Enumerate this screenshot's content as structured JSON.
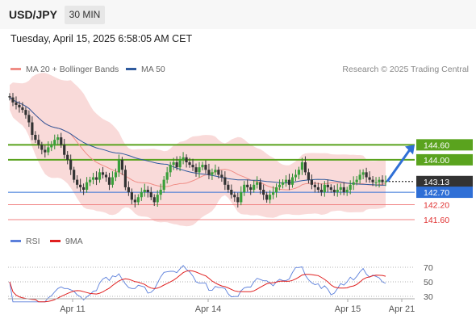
{
  "header": {
    "symbol": "USD/JPY",
    "timeframe": "30 MIN"
  },
  "datetime": "Tuesday, April 15, 2025 6:58:05 AM CET",
  "legend": {
    "ma20": {
      "label": "MA 20 + Bollinger Bands",
      "color": "#f08d86"
    },
    "ma50": {
      "label": "MA 50",
      "color": "#2f5a9e"
    },
    "credit": "Research © 2025 Trading Central"
  },
  "rsi_legend": {
    "rsi": {
      "label": "RSI",
      "color": "#5b7fdb"
    },
    "ma9": {
      "label": "9MA",
      "color": "#e02020"
    }
  },
  "colors": {
    "resistance": "#5aa31e",
    "support": "#2f6fd6",
    "minor": "#f08080",
    "current": "#333333",
    "band": "#f8d4d2",
    "arrow": "#2f6fd6"
  },
  "chart_data": [
    {
      "type": "candlestick",
      "ylim": [
        140.8,
        147.5
      ],
      "xlabels": [
        "Apr 11",
        "Apr 14",
        "Apr 15",
        "Apr 21"
      ],
      "levels": [
        {
          "label": "144.60",
          "value": 144.6,
          "kind": "resistance"
        },
        {
          "label": "144.00",
          "value": 144.0,
          "kind": "resistance"
        },
        {
          "label": "143.13",
          "value": 143.13,
          "kind": "current"
        },
        {
          "label": "142.70",
          "value": 142.7,
          "kind": "support"
        },
        {
          "label": "142.20",
          "value": 142.2,
          "kind": "minor"
        },
        {
          "label": "141.60",
          "value": 141.6,
          "kind": "minor"
        }
      ],
      "target_arrow": {
        "from": 143.13,
        "to": 144.6
      },
      "close_series": [
        146.5,
        146.3,
        146.2,
        146.1,
        146.0,
        145.8,
        145.5,
        145.0,
        144.8,
        144.6,
        144.4,
        144.3,
        144.5,
        144.6,
        144.8,
        144.9,
        144.6,
        144.2,
        144.0,
        143.6,
        143.2,
        143.0,
        142.9,
        142.8,
        143.1,
        143.2,
        143.3,
        143.2,
        143.5,
        143.4,
        143.3,
        143.0,
        143.3,
        143.5,
        144.0,
        143.6,
        142.9,
        142.7,
        142.4,
        142.3,
        142.5,
        142.7,
        142.8,
        142.7,
        142.5,
        142.3,
        142.6,
        142.8,
        143.2,
        143.5,
        143.8,
        143.9,
        143.7,
        144.0,
        144.1,
        143.9,
        143.8,
        143.7,
        143.5,
        143.7,
        143.8,
        143.6,
        143.4,
        143.5,
        143.6,
        143.4,
        143.3,
        143.0,
        142.8,
        142.6,
        142.5,
        142.3,
        142.7,
        143.0,
        142.9,
        142.8,
        143.0,
        143.1,
        142.8,
        142.6,
        142.4,
        142.6,
        142.7,
        142.9,
        143.0,
        143.1,
        143.2,
        143.0,
        143.3,
        143.4,
        143.6,
        143.9,
        143.5,
        143.2,
        143.0,
        142.9,
        142.8,
        142.7,
        143.0,
        142.9,
        142.8,
        142.7,
        142.8,
        142.9,
        142.7,
        142.8,
        143.0,
        143.1,
        143.2,
        143.4,
        143.5,
        143.3,
        143.2,
        143.1,
        143.1,
        143.2,
        143.1,
        143.13
      ],
      "rsi_levels": [
        70,
        50,
        30
      ]
    }
  ]
}
